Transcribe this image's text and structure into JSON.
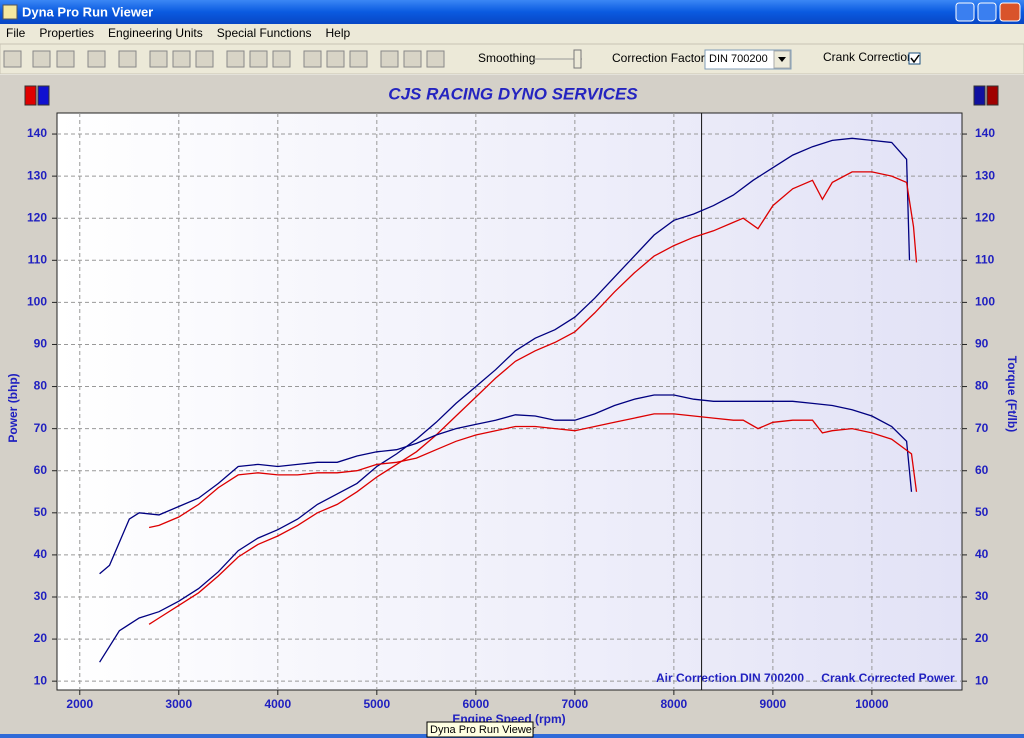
{
  "window": {
    "title": "Dyna Pro Run Viewer"
  },
  "menu": [
    "File",
    "Properties",
    "Engineering Units",
    "Special Functions",
    "Help"
  ],
  "toolbar": {
    "smoothing": "Smoothing",
    "correction_factor": "Correction Factor",
    "correction_value": "DIN 700200",
    "crank_correction": "Crank Correction"
  },
  "tooltip": "Dyna Pro Run Viewer",
  "chart_data": {
    "type": "line",
    "title": "CJS RACING DYNO SERVICES",
    "x_label": "Engine Speed (rpm)",
    "y_label": "Power (bhp)",
    "y2_label": "Torque (Ft/lb)",
    "annotations": [
      "Air Correction DIN 700200",
      "Crank Corrected Power"
    ],
    "xlim": [
      1770,
      10910
    ],
    "xticks": [
      2000,
      3000,
      4000,
      5000,
      6000,
      7000,
      8000,
      9000,
      10000
    ],
    "ylim": [
      7.9,
      145
    ],
    "yticks": [
      10,
      20,
      30,
      40,
      50,
      60,
      70,
      80,
      90,
      100,
      110,
      120,
      130,
      140
    ],
    "y2lim": [
      7.9,
      145
    ],
    "y2ticks": [
      10,
      20,
      30,
      40,
      50,
      60,
      70,
      80,
      90,
      100,
      110,
      120,
      130,
      140
    ],
    "grid": true,
    "cursor_x": 8280,
    "series": [
      {
        "color": "#000080",
        "x": [
          2200,
          2400,
          2600,
          2800,
          3000,
          3200,
          3400,
          3600,
          3800,
          4000,
          4200,
          4400,
          4600,
          4800,
          5000,
          5200,
          5400,
          5600,
          5800,
          6000,
          6200,
          6400,
          6600,
          6800,
          7000,
          7200,
          7400,
          7600,
          7800,
          8000,
          8200,
          8400,
          8600,
          8800,
          9000,
          9200,
          9400,
          9600,
          9800,
          10000,
          10200,
          10350,
          10380
        ],
        "values": [
          14.5,
          22,
          25,
          26.5,
          29,
          32,
          36,
          41,
          44,
          46,
          48.5,
          52,
          54.5,
          57,
          61,
          64,
          67.5,
          71.5,
          76,
          80,
          84,
          88.5,
          91.5,
          93.5,
          96.5,
          101,
          106,
          111,
          116,
          119.5,
          121,
          123,
          125.5,
          129,
          132,
          135,
          137,
          138.5,
          139,
          138.5,
          138,
          134,
          110
        ]
      },
      {
        "color": "#dd0000",
        "x": [
          2700,
          2800,
          3000,
          3200,
          3400,
          3600,
          3800,
          4000,
          4200,
          4400,
          4600,
          4800,
          5000,
          5200,
          5400,
          5600,
          5800,
          6000,
          6200,
          6400,
          6600,
          6800,
          7000,
          7200,
          7400,
          7600,
          7800,
          8000,
          8200,
          8400,
          8600,
          8700,
          8850,
          9000,
          9200,
          9400,
          9500,
          9600,
          9800,
          10000,
          10200,
          10350,
          10420,
          10450
        ],
        "values": [
          23.5,
          25,
          28,
          31,
          35,
          39.5,
          42.5,
          44.5,
          47,
          50,
          52,
          55,
          58.5,
          61.5,
          64.5,
          68.5,
          73,
          77.5,
          82,
          86,
          88.5,
          90.5,
          93,
          97.5,
          102.5,
          107,
          111,
          113.5,
          115.5,
          117,
          119,
          120,
          117.5,
          123,
          127,
          129,
          124.5,
          128.5,
          131,
          131,
          130,
          128.5,
          118,
          109.5
        ]
      },
      {
        "color": "#000080",
        "axis": "y2",
        "x": [
          2200,
          2300,
          2400,
          2500,
          2600,
          2800,
          3000,
          3200,
          3400,
          3600,
          3800,
          4000,
          4200,
          4400,
          4600,
          4800,
          5000,
          5200,
          5400,
          5600,
          5800,
          6000,
          6200,
          6400,
          6600,
          6800,
          7000,
          7200,
          7400,
          7600,
          7800,
          8000,
          8200,
          8400,
          8600,
          8800,
          9000,
          9200,
          9400,
          9600,
          9800,
          10000,
          10200,
          10350,
          10400
        ],
        "values": [
          35.5,
          37.5,
          43,
          48.5,
          50,
          49.5,
          51.5,
          53.5,
          57,
          61,
          61.5,
          61,
          61.5,
          62,
          62,
          63.5,
          64.5,
          65,
          66.5,
          68.5,
          70,
          71,
          72,
          73.3,
          73,
          72,
          72,
          73.5,
          75.5,
          77,
          78,
          78,
          77,
          76.5,
          76.5,
          76.5,
          76.5,
          76.5,
          76,
          75.5,
          74.5,
          73,
          70.5,
          67,
          55
        ]
      },
      {
        "color": "#dd0000",
        "axis": "y2",
        "x": [
          2700,
          2800,
          3000,
          3200,
          3400,
          3600,
          3800,
          4000,
          4200,
          4400,
          4600,
          4800,
          5000,
          5200,
          5400,
          5600,
          5800,
          6000,
          6200,
          6400,
          6600,
          6800,
          7000,
          7200,
          7400,
          7600,
          7800,
          8000,
          8200,
          8400,
          8600,
          8700,
          8850,
          9000,
          9200,
          9400,
          9500,
          9600,
          9800,
          10000,
          10200,
          10400,
          10450
        ],
        "values": [
          46.5,
          47,
          49,
          52,
          56,
          59,
          59.5,
          59,
          59,
          59.5,
          59.5,
          60,
          61.5,
          62,
          63,
          65,
          67,
          68.5,
          69.5,
          70.5,
          70.5,
          70,
          69.5,
          70.5,
          71.5,
          72.5,
          73.5,
          73.5,
          73,
          72.5,
          72,
          72,
          70,
          71.5,
          72,
          72,
          69,
          69.5,
          70,
          69,
          67.5,
          64,
          55
        ]
      }
    ]
  }
}
